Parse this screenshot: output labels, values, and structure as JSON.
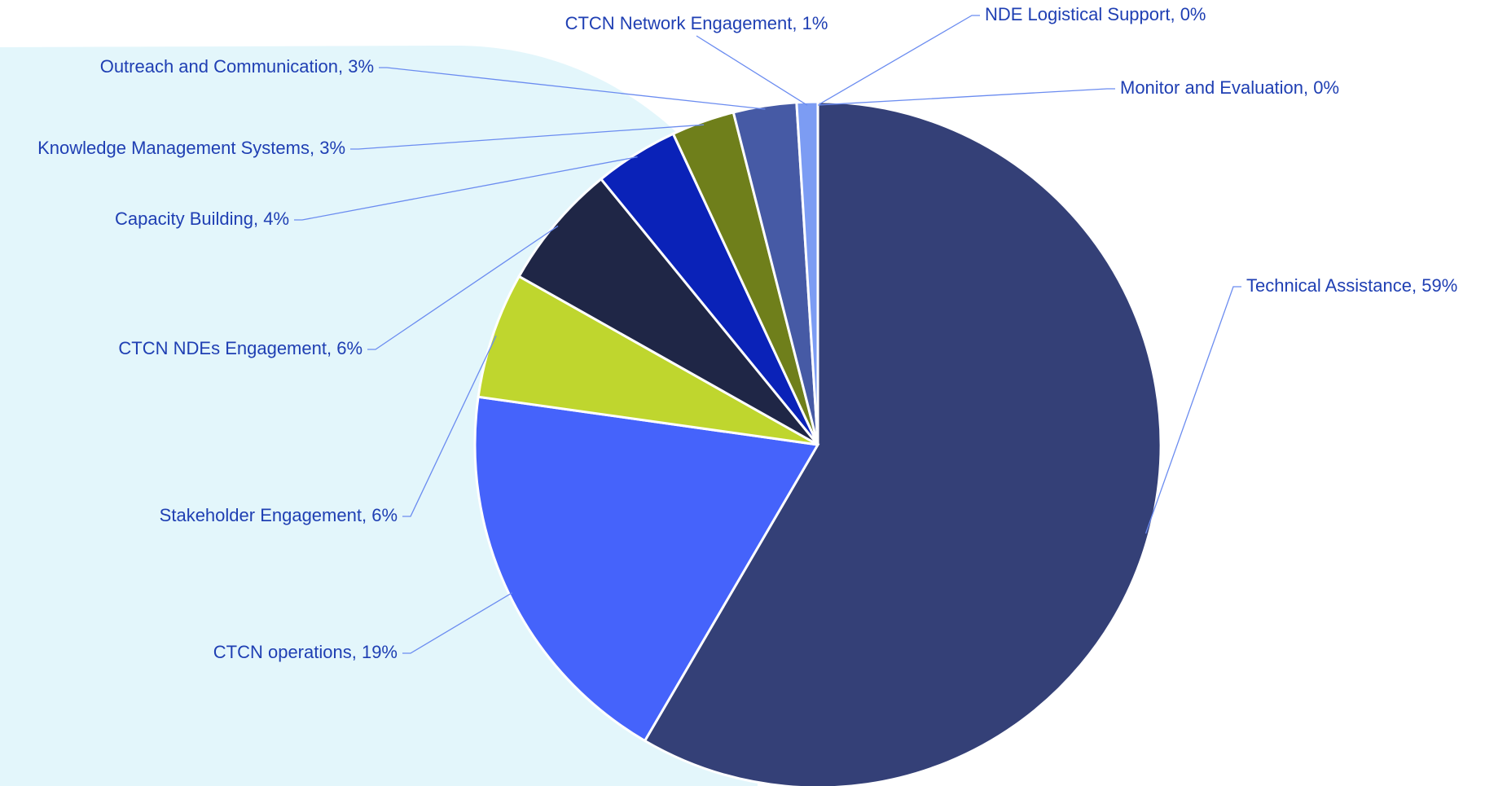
{
  "chart_data": {
    "type": "pie",
    "categories": [
      "Technical Assistance",
      "CTCN operations",
      "Stakeholder Engagement",
      "CTCN NDEs Engagement",
      "Capacity Building",
      "Knowledge Management Systems",
      "Outreach and Communication",
      "CTCN Network Engagement",
      "NDE Logistical Support",
      "Monitor and Evaluation"
    ],
    "values": [
      59,
      19,
      6,
      6,
      4,
      3,
      3,
      1,
      0,
      0
    ],
    "value_labels": [
      "59%",
      "19%",
      "6%",
      "6%",
      "4%",
      "3%",
      "3%",
      "1%",
      "0%",
      "0%"
    ],
    "colors": [
      "#344077",
      "#4563fb",
      "#bfd62e",
      "#1f2646",
      "#0a22b8",
      "#6f7f1b",
      "#465aa5",
      "#7c9cf3",
      "#1a2a6a",
      "#1e2238"
    ]
  }
}
